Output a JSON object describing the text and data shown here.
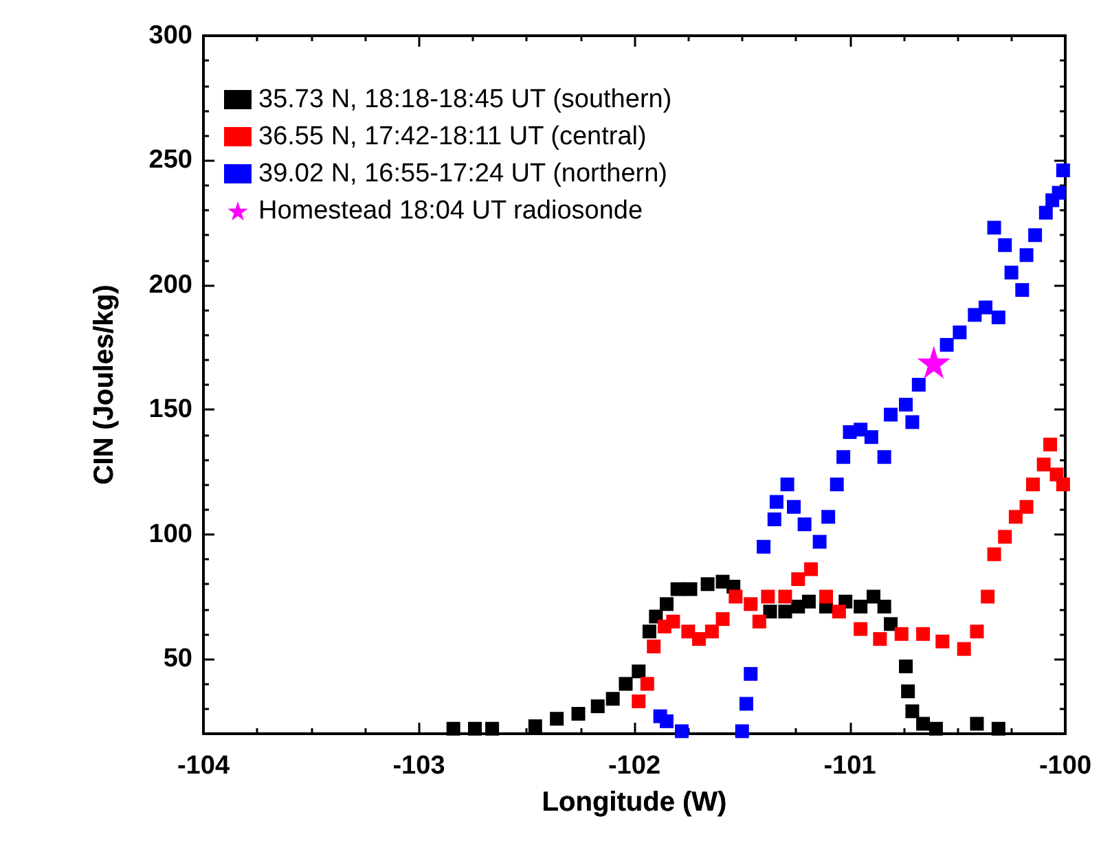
{
  "chart_data": {
    "type": "scatter",
    "xlabel": "Longitude (W)",
    "ylabel": "CIN (Joules/kg)",
    "xlim": [
      -104,
      -100
    ],
    "xticks": [
      -104,
      -103,
      -102,
      -101,
      -100
    ],
    "ylim": [
      20,
      300
    ],
    "yticks": [
      50,
      100,
      150,
      200,
      250,
      300
    ],
    "grid": false,
    "legend": "top left",
    "marker": "square",
    "series": [
      {
        "name": "35.73 N, 18:18-18:45 UT (southern)",
        "color": "#000000",
        "x": [
          -102.84,
          -102.74,
          -102.66,
          -102.46,
          -102.36,
          -102.26,
          -102.17,
          -102.1,
          -102.04,
          -101.98,
          -101.93,
          -101.9,
          -101.85,
          -101.8,
          -101.74,
          -101.66,
          -101.59,
          -101.54,
          -101.37,
          -101.3,
          -101.24,
          -101.19,
          -101.11,
          -101.02,
          -100.95,
          -100.89,
          -100.84,
          -100.81,
          -100.74,
          -100.73,
          -100.71,
          -100.66,
          -100.6,
          -100.41,
          -100.31
        ],
        "values": [
          22,
          22,
          22,
          23,
          26,
          28,
          31,
          34,
          40,
          45,
          61,
          67,
          72,
          78,
          78,
          80,
          81,
          79,
          69,
          69,
          71,
          73,
          71,
          73,
          71,
          75,
          71,
          64,
          47,
          37,
          29,
          24,
          22,
          24,
          22
        ]
      },
      {
        "name": "36.55 N, 17:42-18:11 UT (central)",
        "color": "#ff0000",
        "x": [
          -101.98,
          -101.94,
          -101.91,
          -101.86,
          -101.82,
          -101.75,
          -101.7,
          -101.64,
          -101.59,
          -101.53,
          -101.46,
          -101.42,
          -101.38,
          -101.3,
          -101.24,
          -101.18,
          -101.11,
          -101.05,
          -100.95,
          -100.86,
          -100.76,
          -100.66,
          -100.57,
          -100.47,
          -100.41,
          -100.36,
          -100.33,
          -100.28,
          -100.23,
          -100.18,
          -100.15,
          -100.1,
          -100.07,
          -100.04,
          -100.01
        ],
        "values": [
          33,
          40,
          55,
          63,
          65,
          61,
          58,
          61,
          66,
          75,
          72,
          65,
          75,
          75,
          82,
          86,
          75,
          69,
          62,
          58,
          60,
          60,
          57,
          54,
          61,
          75,
          92,
          99,
          107,
          111,
          120,
          128,
          136,
          124,
          120
        ]
      },
      {
        "name": "39.02 N, 16:55-17:24 UT (northern)",
        "color": "#0000ff",
        "x": [
          -101.88,
          -101.85,
          -101.78,
          -101.5,
          -101.48,
          -101.46,
          -101.4,
          -101.35,
          -101.34,
          -101.29,
          -101.26,
          -101.21,
          -101.14,
          -101.1,
          -101.06,
          -101.03,
          -101,
          -100.95,
          -100.9,
          -100.84,
          -100.81,
          -100.74,
          -100.71,
          -100.68,
          -100.63,
          -100.55,
          -100.49,
          -100.42,
          -100.37,
          -100.31,
          -100.33,
          -100.28,
          -100.25,
          -100.2,
          -100.18,
          -100.14,
          -100.09,
          -100.06,
          -100.03,
          -100.01
        ],
        "values": [
          27,
          25,
          21,
          21,
          32,
          44,
          95,
          106,
          113,
          120,
          111,
          104,
          97,
          107,
          120,
          131,
          141,
          142,
          139,
          131,
          148,
          152,
          145,
          160,
          null,
          176,
          181,
          188,
          191,
          187,
          223,
          216,
          205,
          198,
          212,
          220,
          229,
          234,
          237,
          246
        ]
      },
      {
        "name": "Homestead 18:04 UT radiosonde",
        "color": "#ff00ff",
        "marker": "star",
        "x": [
          -100.61
        ],
        "values": [
          169
        ]
      }
    ]
  }
}
